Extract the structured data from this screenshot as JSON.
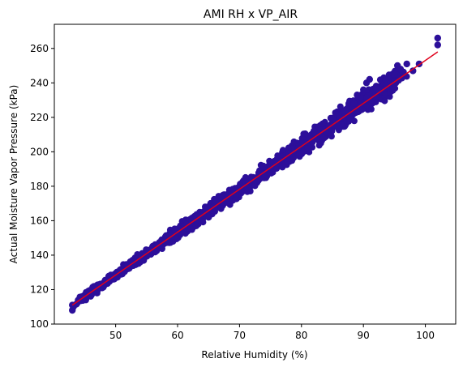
{
  "chart_data": {
    "type": "scatter",
    "title": "AMI RH x VP_AIR",
    "xlabel": "Relative Humidity (%)",
    "ylabel": "Actual Moisture Vapor Pressure (kPa)",
    "xlim": [
      40.1,
      104.9
    ],
    "ylim": [
      100,
      274
    ],
    "xticks": [
      50,
      60,
      70,
      80,
      90,
      100
    ],
    "yticks": [
      100,
      120,
      140,
      160,
      180,
      200,
      220,
      240,
      260
    ],
    "grid": false,
    "legend": "none",
    "point_color": "#2c0f9a",
    "line_color": "#e0001b",
    "fit_line": {
      "x": [
        43.0,
        102.0
      ],
      "y": [
        111.0,
        258.0
      ]
    },
    "points": {
      "x": [
        43.0,
        43.0,
        46.0,
        47.0,
        47.5,
        48.5,
        50.0,
        51.0,
        52.5,
        55.0,
        57.0,
        59.0,
        60.0,
        63.0,
        65.0,
        67.0,
        68.0,
        70.0,
        72.0,
        75.0,
        78.0,
        80.0,
        82.0,
        85.0,
        87.0,
        88.5,
        89.0,
        90.0,
        90.5,
        91.0,
        92.0,
        93.0,
        95.0,
        95.5,
        96.0,
        97.0,
        98.0,
        99.0,
        102.0,
        102.0
      ],
      "y": [
        108.0,
        111.0,
        117.0,
        118.0,
        121.0,
        125.0,
        128.0,
        131.0,
        134.0,
        141.0,
        146.0,
        151.0,
        154.0,
        157.0,
        162.0,
        167.0,
        173.0,
        179.0,
        184.0,
        191.0,
        199.0,
        205.0,
        212.0,
        219.0,
        224.0,
        228.0,
        233.0,
        236.0,
        240.0,
        242.0,
        237.0,
        236.0,
        245.0,
        250.0,
        248.0,
        251.0,
        247.0,
        251.0,
        262.0,
        266.0
      ]
    }
  }
}
